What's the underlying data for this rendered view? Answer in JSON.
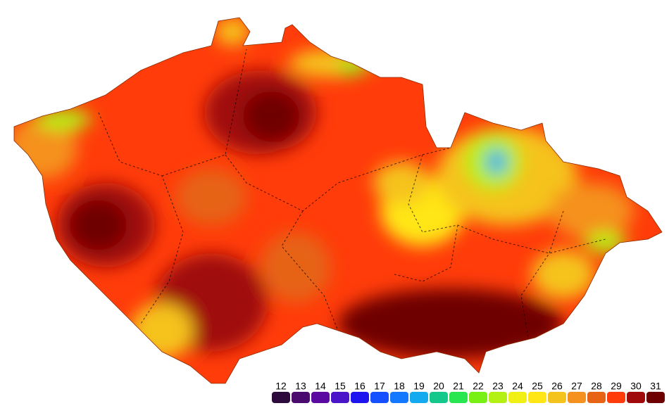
{
  "legend": {
    "items": [
      {
        "label": 12,
        "color": "#2d0a3c"
      },
      {
        "label": 13,
        "color": "#4b0a6e"
      },
      {
        "label": 14,
        "color": "#5a0aa0"
      },
      {
        "label": 15,
        "color": "#4b14c8"
      },
      {
        "label": 16,
        "color": "#1e14f0"
      },
      {
        "label": 17,
        "color": "#1450ff"
      },
      {
        "label": 18,
        "color": "#1478ff"
      },
      {
        "label": 19,
        "color": "#14aaf0"
      },
      {
        "label": 20,
        "color": "#14c88c"
      },
      {
        "label": 21,
        "color": "#28e650"
      },
      {
        "label": 22,
        "color": "#78f014"
      },
      {
        "label": 23,
        "color": "#b4f014"
      },
      {
        "label": 24,
        "color": "#f0f014"
      },
      {
        "label": 25,
        "color": "#ffe614"
      },
      {
        "label": 26,
        "color": "#f5c31e"
      },
      {
        "label": 27,
        "color": "#f5911e"
      },
      {
        "label": 28,
        "color": "#e66414"
      },
      {
        "label": 29,
        "color": "#ff3c0a"
      },
      {
        "label": 30,
        "color": "#a00a0a"
      },
      {
        "label": 31,
        "color": "#6e0000"
      }
    ]
  }
}
